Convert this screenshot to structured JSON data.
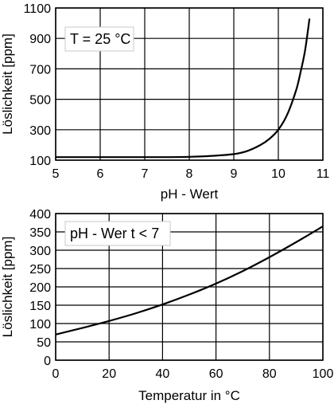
{
  "chart_data": [
    {
      "type": "line",
      "xlabel": "pH - Wert",
      "ylabel": "Löslichkeit [ppm]",
      "annotation": "T = 25 °C",
      "xlim": [
        5,
        11
      ],
      "ylim": [
        100,
        1100
      ],
      "x_ticks": [
        5,
        6,
        7,
        8,
        9,
        10,
        11
      ],
      "y_ticks": [
        100,
        300,
        500,
        700,
        900,
        1100
      ],
      "grid": true,
      "series": [
        {
          "x": [
            5.0,
            6.0,
            7.0,
            7.5,
            8.0,
            8.5,
            9.0,
            9.3,
            9.6,
            9.8,
            10.0,
            10.2,
            10.4,
            10.5,
            10.6,
            10.7
          ],
          "y": [
            120,
            120,
            120,
            120,
            122,
            128,
            140,
            160,
            200,
            240,
            300,
            400,
            560,
            680,
            820,
            1030
          ]
        }
      ]
    },
    {
      "type": "line",
      "xlabel": "Temperatur in °C",
      "ylabel": "Löslichkeit [ppm]",
      "annotation": "pH - Wer t < 7",
      "xlim": [
        0,
        100
      ],
      "ylim": [
        0,
        400
      ],
      "x_ticks": [
        0,
        20,
        40,
        60,
        80,
        100
      ],
      "y_ticks": [
        0,
        50,
        100,
        150,
        200,
        250,
        300,
        350,
        400
      ],
      "grid": true,
      "series": [
        {
          "x": [
            0,
            10,
            20,
            30,
            40,
            50,
            60,
            70,
            80,
            90,
            100
          ],
          "y": [
            70,
            88,
            107,
            128,
            152,
            179,
            209,
            243,
            281,
            322,
            365
          ]
        }
      ]
    }
  ]
}
